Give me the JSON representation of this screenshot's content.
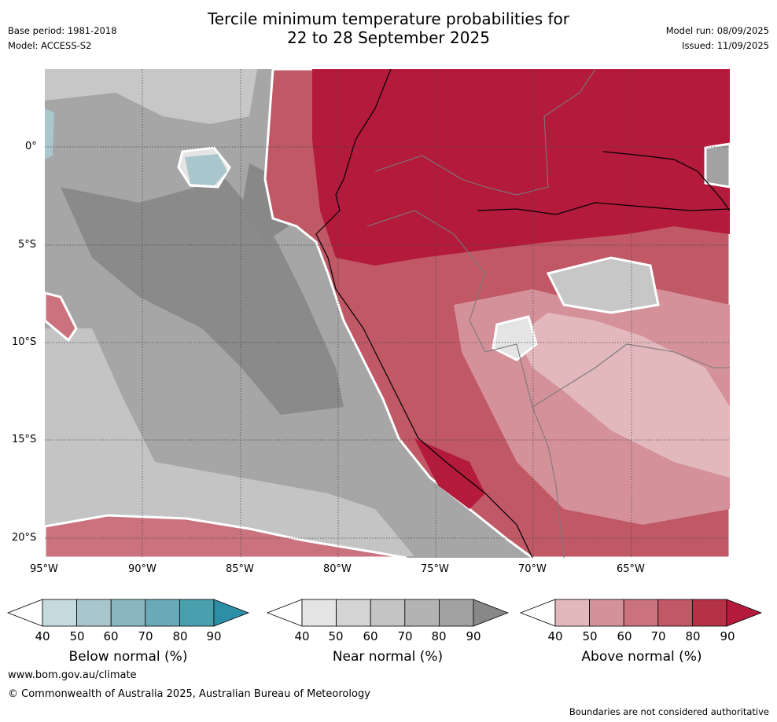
{
  "header": {
    "title_line1": "Tercile minimum temperature probabilities for",
    "title_line2": "22 to 28 September 2025",
    "base_period": "Base period: 1981-2018",
    "model": "Model: ACCESS-S2",
    "model_run": "Model run: 08/09/2025",
    "issued": "Issued: 11/09/2025"
  },
  "map": {
    "lat_labels": [
      "0°",
      "5°S",
      "10°S",
      "15°S",
      "20°S"
    ],
    "lon_labels": [
      "95°W",
      "90°W",
      "85°W",
      "80°W",
      "75°W",
      "70°W",
      "65°W"
    ]
  },
  "colorbars": [
    {
      "title": "Below normal (%)",
      "ticks": [
        "40",
        "50",
        "60",
        "70",
        "80",
        "90"
      ],
      "colors": [
        "#c4dade",
        "#a8c6cc",
        "#8ab6c0",
        "#6aa9b6",
        "#4a9fae",
        "#2d8fa6"
      ]
    },
    {
      "title": "Near normal (%)",
      "ticks": [
        "40",
        "50",
        "60",
        "70",
        "80",
        "90"
      ],
      "colors": [
        "#e4e4e4",
        "#d4d4d4",
        "#c4c4c4",
        "#b3b3b3",
        "#a2a2a2",
        "#888888"
      ]
    },
    {
      "title": "Above normal (%)",
      "ticks": [
        "40",
        "50",
        "60",
        "70",
        "80",
        "90"
      ],
      "colors": [
        "#e2b8bd",
        "#d5919a",
        "#ca737e",
        "#c05866",
        "#b53146",
        "#b31a3c"
      ]
    }
  ],
  "footer": {
    "url": "www.bom.gov.au/climate",
    "copyright": "© Commonwealth of Australia 2025, Australian Bureau of Meteorology",
    "disclaimer": "Boundaries are not considered authoritative"
  }
}
